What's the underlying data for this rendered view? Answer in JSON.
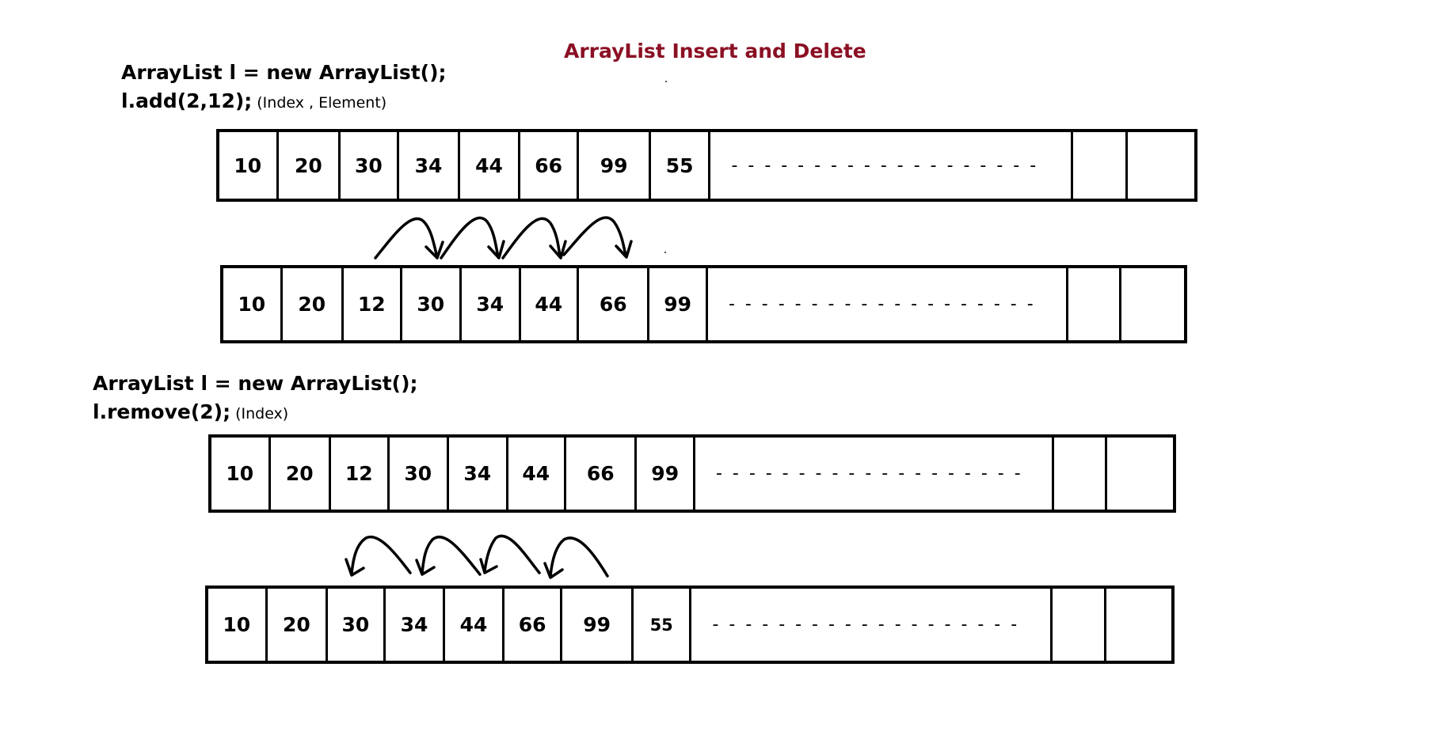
{
  "title": "ArrayList Insert and Delete",
  "insert": {
    "line1": "ArrayList l = new ArrayList();",
    "line2": "l.add(2,12);",
    "note": "(Index , Element)",
    "before": [
      "10",
      "20",
      "30",
      "34",
      "44",
      "66",
      "99",
      "55"
    ],
    "after": [
      "10",
      "20",
      "12",
      "30",
      "34",
      "44",
      "66",
      "99"
    ]
  },
  "remove": {
    "line1": "ArrayList l = new ArrayList();",
    "line2": "l.remove(2);",
    "note": "(Index)",
    "before": [
      "10",
      "20",
      "12",
      "30",
      "34",
      "44",
      "66",
      "99"
    ],
    "after": [
      "10",
      "20",
      "30",
      "34",
      "44",
      "66",
      "99",
      "55"
    ]
  },
  "dashes": "- - - - - - - - - - - - - - - - - - -",
  "colors": {
    "title": "#8b1024",
    "ink": "#000000"
  }
}
